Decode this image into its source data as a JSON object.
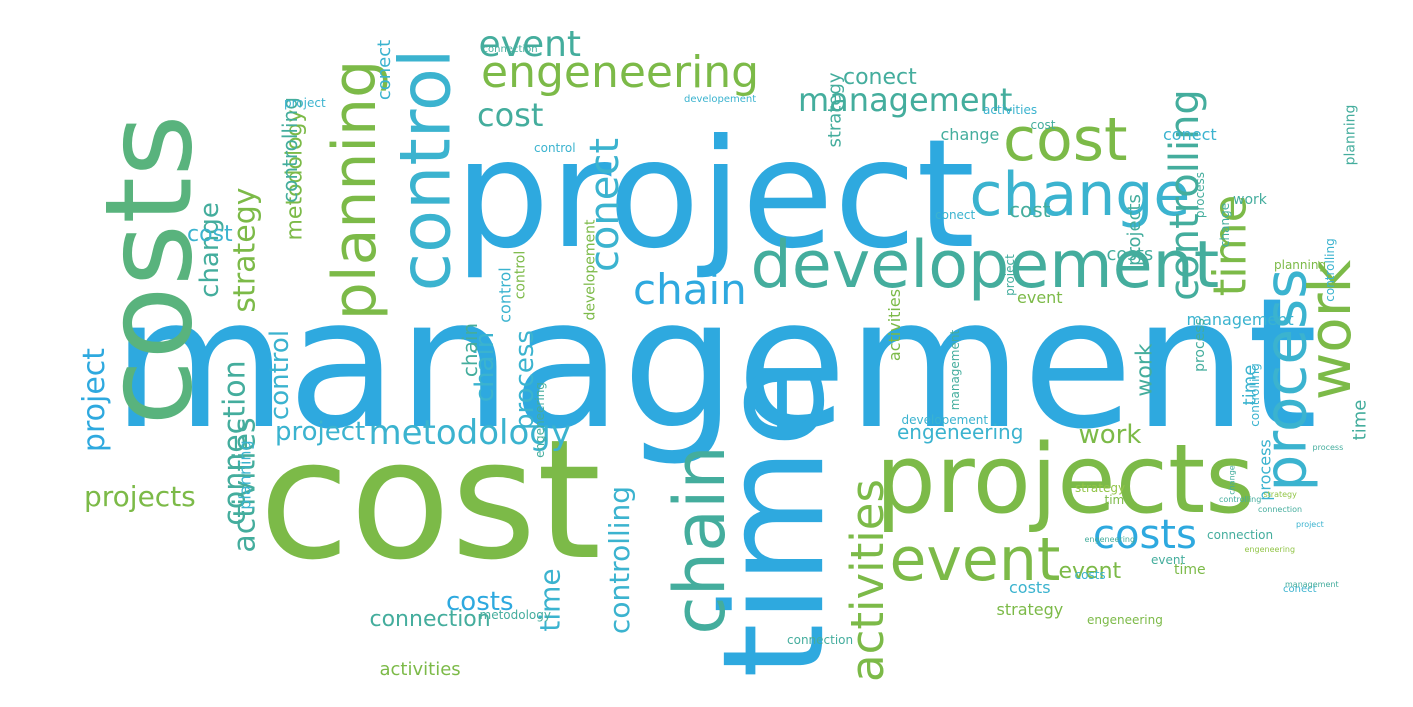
{
  "palette": {
    "blue": "#2ea9df",
    "cyan": "#3bb3cf",
    "teal": "#44ad9d",
    "seagreen": "#59b37d",
    "green": "#7cba48",
    "lime": "#92c548"
  },
  "words": [
    {
      "text": "management",
      "weight": 180,
      "color": "blue"
    },
    {
      "text": "cost",
      "weight": 165,
      "color": "green"
    },
    {
      "text": "project",
      "weight": 150,
      "color": "blue"
    },
    {
      "text": "time",
      "weight": 140,
      "color": "blue"
    },
    {
      "text": "costs",
      "weight": 120,
      "color": "seagreen"
    },
    {
      "text": "projects",
      "weight": 95,
      "color": "green"
    },
    {
      "text": "developement",
      "weight": 65,
      "color": "teal"
    },
    {
      "text": "control",
      "weight": 70,
      "color": "cyan"
    },
    {
      "text": "change",
      "weight": 60,
      "color": "cyan"
    },
    {
      "text": "cost",
      "weight": 60,
      "color": "green"
    },
    {
      "text": "planning",
      "weight": 60,
      "color": "green"
    },
    {
      "text": "event",
      "weight": 60,
      "color": "green"
    },
    {
      "text": "process",
      "weight": 58,
      "color": "cyan"
    },
    {
      "text": "work",
      "weight": 58,
      "color": "green"
    },
    {
      "text": "chain",
      "weight": 70,
      "color": "teal"
    },
    {
      "text": "activities",
      "weight": 45,
      "color": "green"
    },
    {
      "text": "engeneering",
      "weight": 44,
      "color": "green"
    },
    {
      "text": "time",
      "weight": 45,
      "color": "green"
    },
    {
      "text": "controlling",
      "weight": 40,
      "color": "teal"
    },
    {
      "text": "conect",
      "weight": 40,
      "color": "cyan"
    },
    {
      "text": "costs",
      "weight": 40,
      "color": "blue"
    },
    {
      "text": "chain",
      "weight": 42,
      "color": "blue"
    },
    {
      "text": "event",
      "weight": 36,
      "color": "teal"
    },
    {
      "text": "metodology",
      "weight": 34,
      "color": "cyan"
    },
    {
      "text": "management",
      "weight": 32,
      "color": "teal"
    },
    {
      "text": "cost",
      "weight": 32,
      "color": "teal"
    },
    {
      "text": "projects",
      "weight": 28,
      "color": "green"
    },
    {
      "text": "strategy",
      "weight": 30,
      "color": "green"
    },
    {
      "text": "connection",
      "weight": 30,
      "color": "teal"
    },
    {
      "text": "activities",
      "weight": 30,
      "color": "teal"
    },
    {
      "text": "project",
      "weight": 30,
      "color": "blue"
    },
    {
      "text": "change",
      "weight": 26,
      "color": "teal"
    },
    {
      "text": "controlling",
      "weight": 28,
      "color": "cyan"
    },
    {
      "text": "process",
      "weight": 26,
      "color": "cyan"
    },
    {
      "text": "control",
      "weight": 26,
      "color": "cyan"
    },
    {
      "text": "time",
      "weight": 28,
      "color": "cyan"
    },
    {
      "text": "costs",
      "weight": 26,
      "color": "blue"
    },
    {
      "text": "metodology",
      "weight": 22,
      "color": "green"
    },
    {
      "text": "project",
      "weight": 26,
      "color": "cyan"
    },
    {
      "text": "chain",
      "weight": 26,
      "color": "cyan"
    },
    {
      "text": "work",
      "weight": 26,
      "color": "green"
    },
    {
      "text": "event",
      "weight": 22,
      "color": "green"
    },
    {
      "text": "engeneering",
      "weight": 20,
      "color": "cyan"
    },
    {
      "text": "work",
      "weight": 22,
      "color": "teal"
    },
    {
      "text": "cost",
      "weight": 22,
      "color": "cyan"
    },
    {
      "text": "projects",
      "weight": 18,
      "color": "teal"
    },
    {
      "text": "conect",
      "weight": 22,
      "color": "teal"
    },
    {
      "text": "conect",
      "weight": 18,
      "color": "cyan"
    },
    {
      "text": "connection",
      "weight": 22,
      "color": "teal"
    },
    {
      "text": "activities",
      "weight": 18,
      "color": "green"
    },
    {
      "text": "controlling",
      "weight": 20,
      "color": "teal"
    },
    {
      "text": "strategy",
      "weight": 18,
      "color": "teal"
    },
    {
      "text": "time",
      "weight": 18,
      "color": "teal"
    },
    {
      "text": "time",
      "weight": 18,
      "color": "cyan"
    },
    {
      "text": "chain",
      "weight": 20,
      "color": "teal"
    },
    {
      "text": "developement",
      "weight": 14,
      "color": "green"
    },
    {
      "text": "cost",
      "weight": 20,
      "color": "teal"
    },
    {
      "text": "costs",
      "weight": 18,
      "color": "teal"
    },
    {
      "text": "management",
      "weight": 16,
      "color": "cyan"
    },
    {
      "text": "event",
      "weight": 16,
      "color": "green"
    },
    {
      "text": "change",
      "weight": 16,
      "color": "teal"
    },
    {
      "text": "conect",
      "weight": 16,
      "color": "cyan"
    },
    {
      "text": "control",
      "weight": 16,
      "color": "cyan"
    },
    {
      "text": "process",
      "weight": 16,
      "color": "cyan"
    },
    {
      "text": "activities",
      "weight": 16,
      "color": "green"
    },
    {
      "text": "strategy",
      "weight": 16,
      "color": "green"
    },
    {
      "text": "costs",
      "weight": 16,
      "color": "cyan"
    },
    {
      "text": "planning",
      "weight": 16,
      "color": "cyan"
    },
    {
      "text": "control",
      "weight": 14,
      "color": "green"
    },
    {
      "text": "connection",
      "weight": 12,
      "color": "teal"
    },
    {
      "text": "time",
      "weight": 14,
      "color": "green"
    },
    {
      "text": "work",
      "weight": 14,
      "color": "teal"
    },
    {
      "text": "process",
      "weight": 14,
      "color": "teal"
    },
    {
      "text": "planning",
      "weight": 14,
      "color": "teal"
    },
    {
      "text": "activities",
      "weight": 12,
      "color": "cyan"
    },
    {
      "text": "controlling",
      "weight": 12,
      "color": "cyan"
    },
    {
      "text": "project",
      "weight": 12,
      "color": "cyan"
    },
    {
      "text": "control",
      "weight": 12,
      "color": "cyan"
    },
    {
      "text": "connection",
      "weight": 12,
      "color": "teal"
    },
    {
      "text": "metodology",
      "weight": 12,
      "color": "teal"
    },
    {
      "text": "engeneering",
      "weight": 12,
      "color": "green"
    },
    {
      "text": "event",
      "weight": 12,
      "color": "teal"
    },
    {
      "text": "project",
      "weight": 12,
      "color": "teal"
    },
    {
      "text": "time",
      "weight": 12,
      "color": "green"
    },
    {
      "text": "conect",
      "weight": 12,
      "color": "cyan"
    },
    {
      "text": "strategy",
      "weight": 12,
      "color": "lime"
    },
    {
      "text": "change",
      "weight": 12,
      "color": "teal"
    },
    {
      "text": "cost",
      "weight": 12,
      "color": "teal"
    },
    {
      "text": "process",
      "weight": 12,
      "color": "teal"
    },
    {
      "text": "costs",
      "weight": 12,
      "color": "cyan"
    },
    {
      "text": "controlling",
      "weight": 12,
      "color": "cyan"
    },
    {
      "text": "planning",
      "weight": 12,
      "color": "green"
    },
    {
      "text": "management",
      "weight": 12,
      "color": "teal"
    },
    {
      "text": "engeneering",
      "weight": 12,
      "color": "teal"
    },
    {
      "text": "developement",
      "weight": 12,
      "color": "cyan"
    },
    {
      "text": "developement",
      "weight": 10,
      "color": "cyan"
    },
    {
      "text": "connection",
      "weight": 10,
      "color": "teal"
    },
    {
      "text": "conect",
      "weight": 10,
      "color": "cyan"
    },
    {
      "text": "management",
      "weight": 8,
      "color": "teal"
    },
    {
      "text": "engeneering",
      "weight": 8,
      "color": "teal"
    },
    {
      "text": "change",
      "weight": 8,
      "color": "teal"
    },
    {
      "text": "controlling",
      "weight": 8,
      "color": "teal"
    },
    {
      "text": "strategy",
      "weight": 8,
      "color": "lime"
    },
    {
      "text": "connection",
      "weight": 8,
      "color": "teal"
    },
    {
      "text": "project",
      "weight": 8,
      "color": "cyan"
    },
    {
      "text": "process",
      "weight": 8,
      "color": "teal"
    },
    {
      "text": "engeneering",
      "weight": 8,
      "color": "lime"
    }
  ]
}
